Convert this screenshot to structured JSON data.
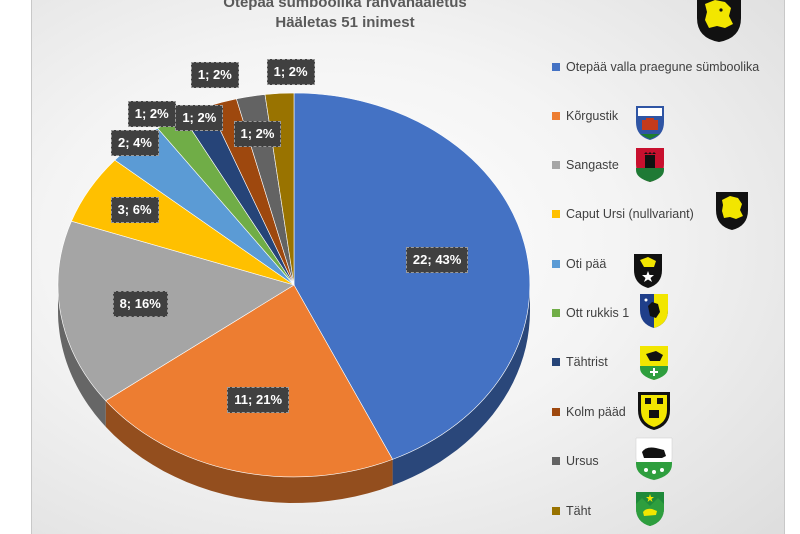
{
  "chart_data": {
    "type": "pie",
    "title": "Otepää sümboolika rahvahääletus",
    "subtitle": "Hääletas 51 inimest",
    "slices": [
      {
        "name": "Otepää valla praegune sümboolika",
        "value": 22,
        "label": "22; 43%",
        "color": "#4472C4"
      },
      {
        "name": "Kõrgustik",
        "value": 11,
        "label": "11; 21%",
        "color": "#ED7D31"
      },
      {
        "name": "Sangaste",
        "value": 8,
        "label": "8; 16%",
        "color": "#A5A5A5"
      },
      {
        "name": "Caput Ursi (nullvariant)",
        "value": 3,
        "label": "3; 6%",
        "color": "#FFC000"
      },
      {
        "name": "Oti pää",
        "value": 2,
        "label": "2; 4%",
        "color": "#5B9BD5"
      },
      {
        "name": "Ott rukkis 1",
        "value": 1,
        "label": "1; 2%",
        "color": "#70AD47"
      },
      {
        "name": "Tähtrist",
        "value": 1,
        "label": "1; 2%",
        "color": "#264478"
      },
      {
        "name": "Kolm pääd",
        "value": 1,
        "label": "1; 2%",
        "color": "#9E480E"
      },
      {
        "name": "Ursus",
        "value": 1,
        "label": "1; 2%",
        "color": "#636363"
      },
      {
        "name": "Täht",
        "value": 1,
        "label": "1; 2%",
        "color": "#997300"
      }
    ],
    "legend_position": "right"
  },
  "icons": {
    "top": "yellow-bear-head-on-black-shield-icon",
    "legend": [
      "",
      "castle-on-blue-white-shield-icon",
      "tower-on-red-green-shield-icon",
      "yellow-bear-head-on-black-shield-icon",
      "bear-head-and-star-on-black-shield-icon",
      "rye-and-star-blue-yellow-shield-icon",
      "bear-and-cross-yellow-green-shield-icon",
      "three-bear-heads-yellow-shield-icon",
      "black-bear-with-flowers-green-shield-icon",
      "bear-and-star-green-hills-shield-icon"
    ]
  }
}
